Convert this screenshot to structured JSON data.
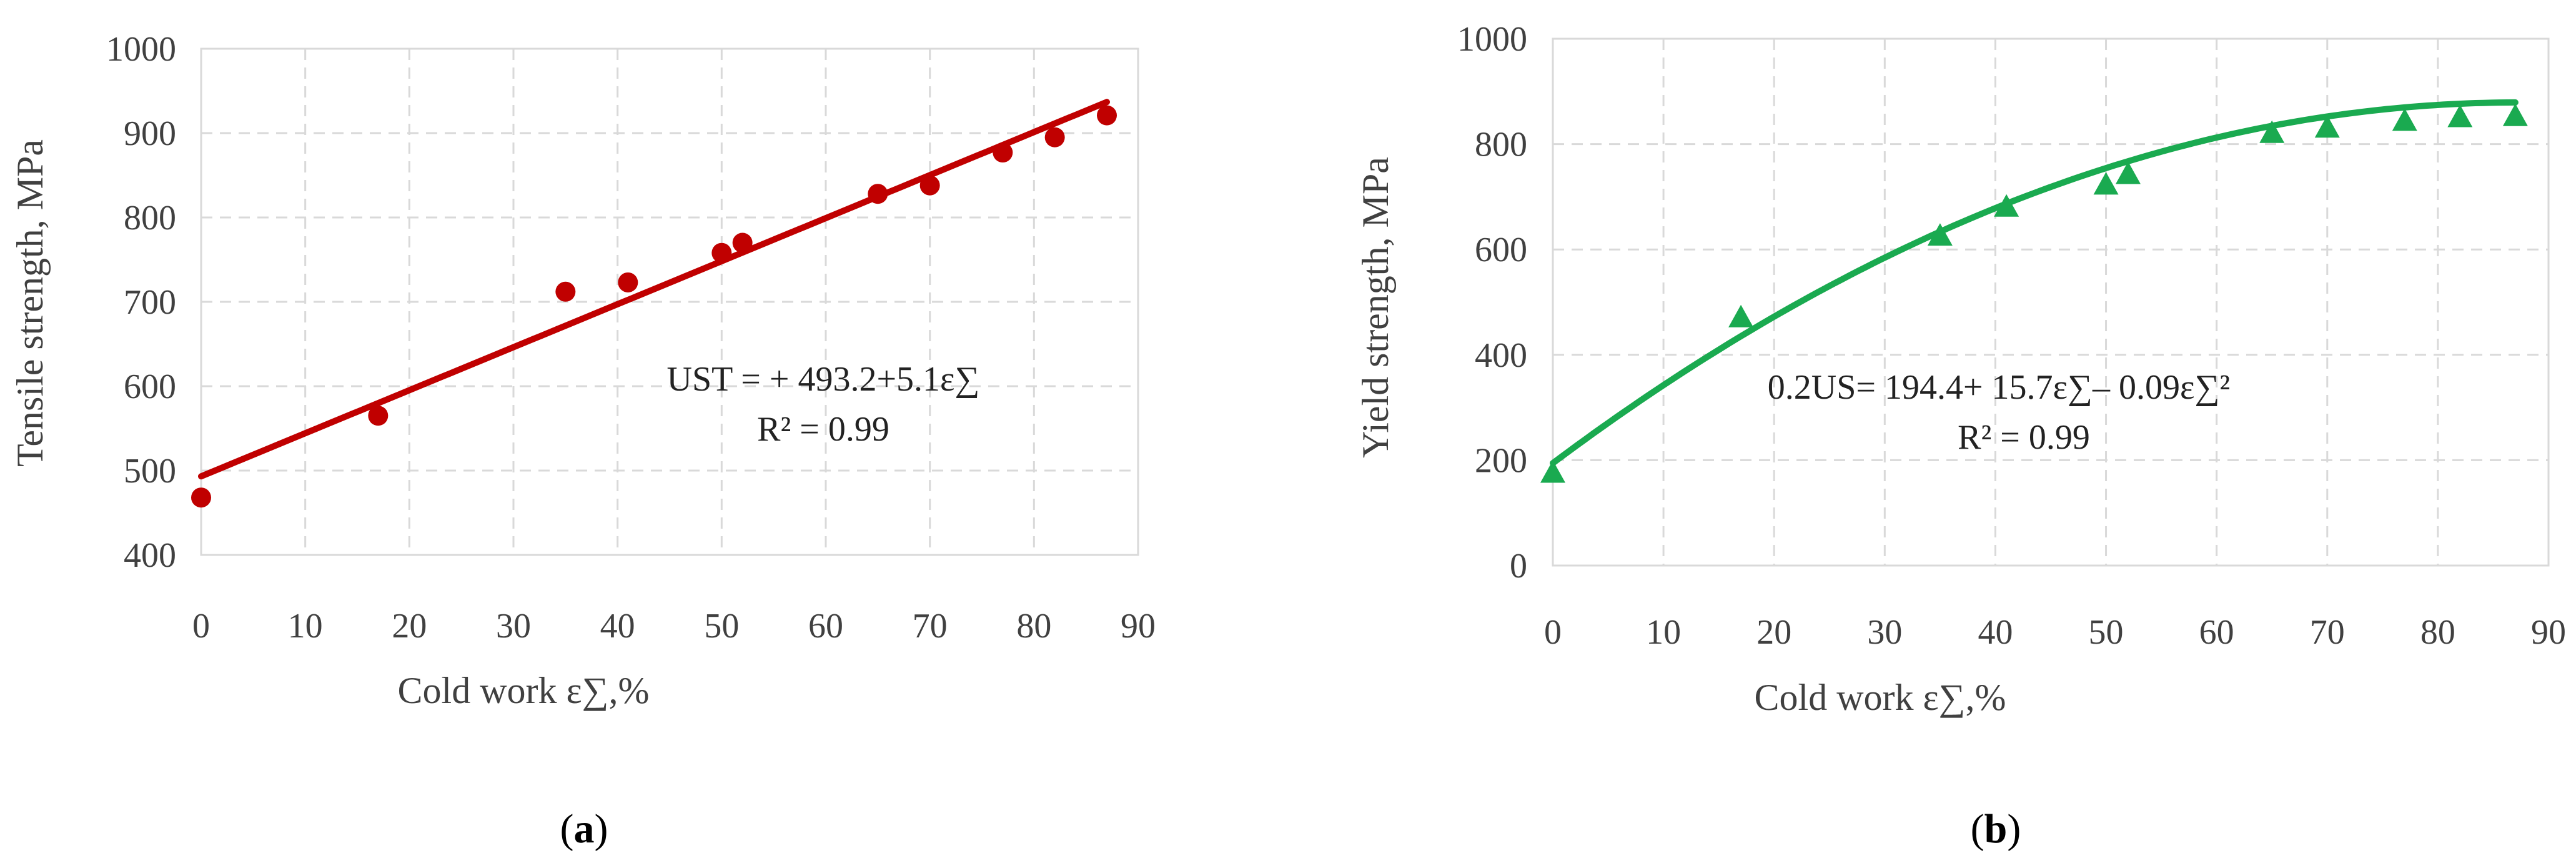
{
  "colors": {
    "chart_a": "#c00000",
    "chart_b": "#1aaa50"
  },
  "panel_labels": [
    "(a)",
    "(b)"
  ],
  "chart_data": [
    {
      "type": "scatter",
      "panel": "(a)",
      "xlabel": "Cold work ε∑,%",
      "ylabel": "Tensile strength, MPa",
      "xlim": [
        0,
        90
      ],
      "ylim": [
        400,
        1000
      ],
      "xticks": [
        0,
        10,
        20,
        30,
        40,
        50,
        60,
        70,
        80,
        90
      ],
      "yticks": [
        400,
        500,
        600,
        700,
        800,
        900,
        1000
      ],
      "grid": true,
      "marker": "circle",
      "x": [
        0,
        17,
        35,
        41,
        50,
        52,
        65,
        70,
        77,
        82,
        87
      ],
      "y": [
        468,
        565,
        712,
        723,
        758,
        770,
        828,
        838,
        877,
        895,
        921
      ],
      "trendline": {
        "type": "linear",
        "intercept": 493.2,
        "slope": 5.1,
        "x_range": [
          0,
          87
        ]
      },
      "annotation": [
        "UST = + 493.2+5.1ε∑",
        "R² = 0.99"
      ]
    },
    {
      "type": "scatter",
      "panel": "(b)",
      "xlabel": "Cold work ε∑,%",
      "ylabel": "Yield strength, MPa",
      "xlim": [
        0,
        90
      ],
      "ylim": [
        0,
        1000
      ],
      "xticks": [
        0,
        10,
        20,
        30,
        40,
        50,
        60,
        70,
        80,
        90
      ],
      "yticks": [
        0,
        200,
        400,
        600,
        800,
        1000
      ],
      "grid": true,
      "marker": "triangle",
      "x": [
        0,
        17,
        35,
        41,
        50,
        52,
        65,
        70,
        77,
        82,
        87
      ],
      "y": [
        175,
        470,
        625,
        680,
        722,
        742,
        820,
        830,
        843,
        850,
        852
      ],
      "trendline": {
        "type": "poly2",
        "c0": 194.4,
        "c1": 15.7,
        "c2": -0.09,
        "x_range": [
          0,
          87
        ]
      },
      "annotation": [
        "0.2US= 194.4+ 15.7ε∑– 0.09ε∑²",
        "R² = 0.99"
      ]
    }
  ]
}
